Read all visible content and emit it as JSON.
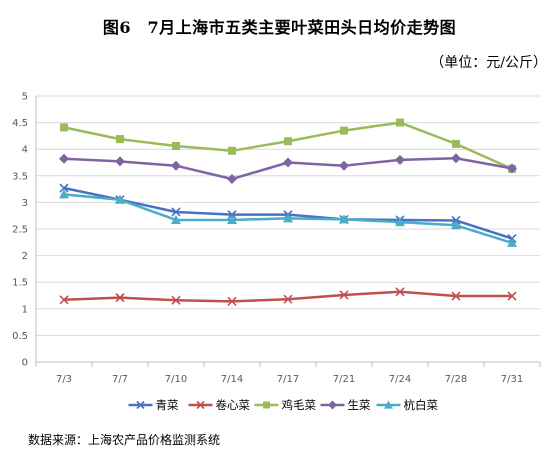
{
  "chart_data": {
    "type": "line",
    "title": "图6　7月上海市五类主要叶菜田头日均价走势图",
    "unit": "（单位：元/公斤）",
    "source": "数据来源：上海农产品价格监测系统",
    "categories": [
      "7/3",
      "7/7",
      "7/10",
      "7/14",
      "7/17",
      "7/21",
      "7/24",
      "7/28",
      "7/31"
    ],
    "ylim": [
      0,
      5
    ],
    "yticks": [
      "0",
      "0.5",
      "1",
      "1.5",
      "2",
      "2.5",
      "3",
      "3.5",
      "4",
      "4.5",
      "5"
    ],
    "grid": true,
    "legend_position": "bottom",
    "series": [
      {
        "name": "青菜",
        "color": "#4472c4",
        "marker": "x",
        "values": [
          3.27,
          3.05,
          2.82,
          2.77,
          2.77,
          2.68,
          2.67,
          2.66,
          2.32
        ]
      },
      {
        "name": "卷心菜",
        "color": "#c0504d",
        "marker": "x",
        "values": [
          1.17,
          1.21,
          1.16,
          1.14,
          1.18,
          1.26,
          1.32,
          1.24,
          1.24
        ]
      },
      {
        "name": "鸡毛菜",
        "color": "#9bbb59",
        "marker": "square",
        "values": [
          4.41,
          4.19,
          4.06,
          3.97,
          4.15,
          4.35,
          4.5,
          4.1,
          3.63
        ]
      },
      {
        "name": "生菜",
        "color": "#8064a2",
        "marker": "diamond",
        "values": [
          3.82,
          3.77,
          3.69,
          3.44,
          3.75,
          3.69,
          3.8,
          3.83,
          3.64
        ]
      },
      {
        "name": "杭白菜",
        "color": "#4bacc6",
        "marker": "triangle",
        "values": [
          3.15,
          3.05,
          2.67,
          2.67,
          2.7,
          2.68,
          2.63,
          2.57,
          2.24
        ]
      }
    ]
  }
}
